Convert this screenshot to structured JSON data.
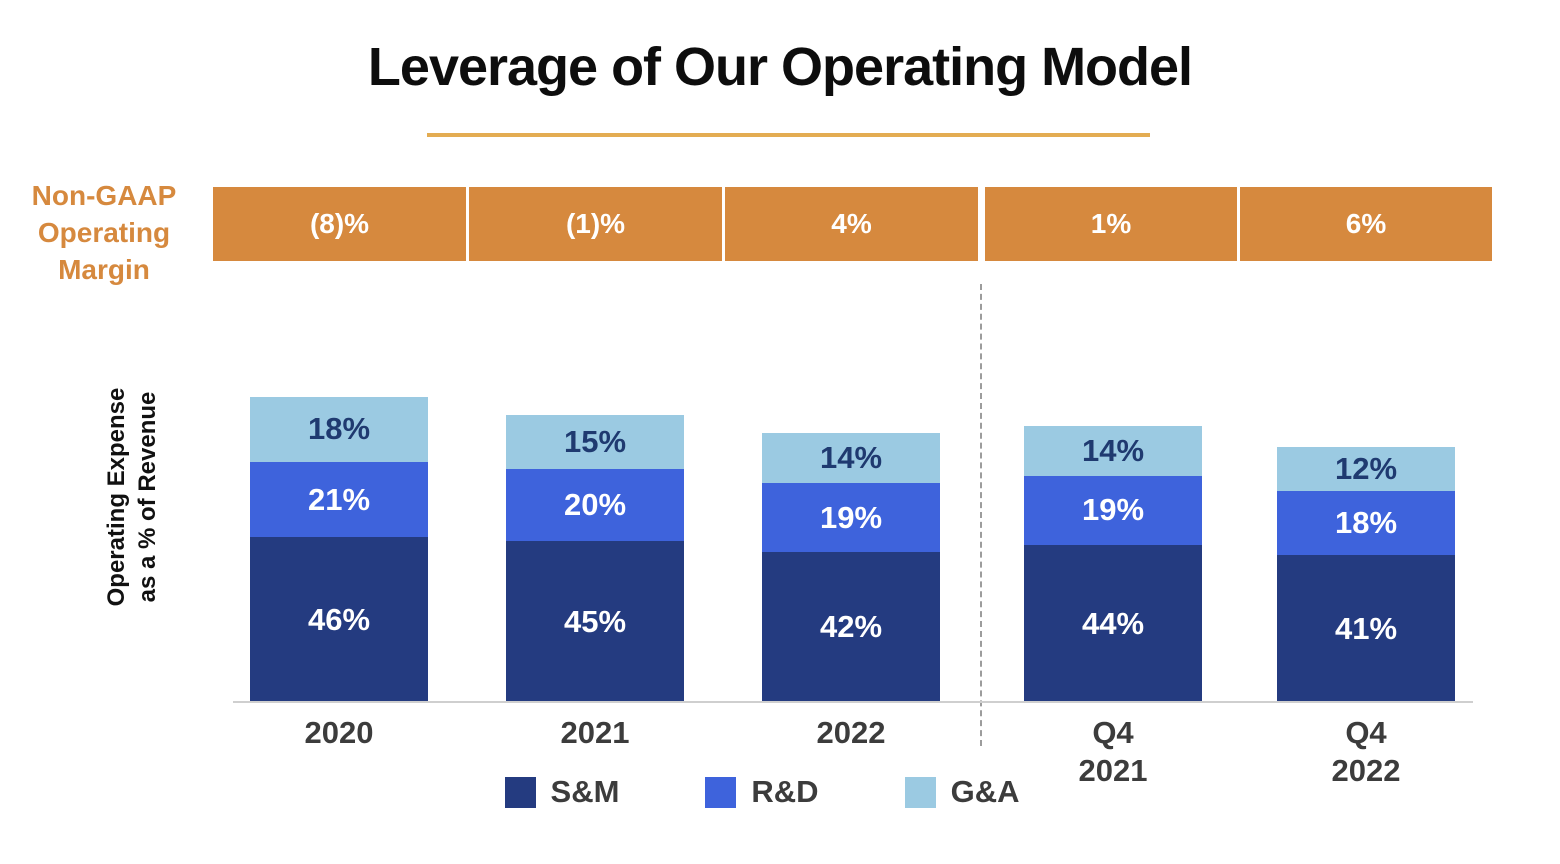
{
  "title": "Leverage of Our Operating Model",
  "margin_band": {
    "label": "Non-GAAP\nOperating\nMargin",
    "values": [
      "(8)%",
      "(1)%",
      "4%",
      "1%",
      "6%"
    ]
  },
  "ylabel": "Operating Expense\nas a % of Revenue",
  "chart_data": {
    "type": "bar",
    "stacked": true,
    "title": "Leverage of Our Operating Model",
    "categories": [
      "2020",
      "2021",
      "2022",
      "Q4\n2021",
      "Q4\n2022"
    ],
    "series": [
      {
        "name": "S&M",
        "values": [
          46,
          45,
          42,
          44,
          41
        ],
        "color": "#243b80",
        "label_color": "#ffffff"
      },
      {
        "name": "R&D",
        "values": [
          21,
          20,
          19,
          19,
          18
        ],
        "color": "#3e63dc",
        "label_color": "#ffffff"
      },
      {
        "name": "G&A",
        "values": [
          18,
          15,
          14,
          14,
          12
        ],
        "color": "#9bcae2",
        "label_color": "#1f3a70"
      }
    ],
    "value_suffix": "%",
    "annotation_row": {
      "label": "Non-GAAP Operating Margin",
      "values": [
        "(8)%",
        "(1)%",
        "4%",
        "1%",
        "6%"
      ],
      "color": "#d6893e"
    },
    "ylabel": "Operating Expense as a % of Revenue",
    "legend": [
      "S&M",
      "R&D",
      "G&A"
    ],
    "legend_position": "bottom",
    "group_separator_after_index": 2,
    "grid": false
  },
  "colors": {
    "band_orange": "#d6893e",
    "underline_gold": "#e3ac52",
    "sm_navy": "#243b80",
    "rd_blue": "#3e63dc",
    "ga_light_blue": "#9bcae2",
    "axis_text": "#3c3c3c",
    "title_text": "#0d0d0d"
  }
}
